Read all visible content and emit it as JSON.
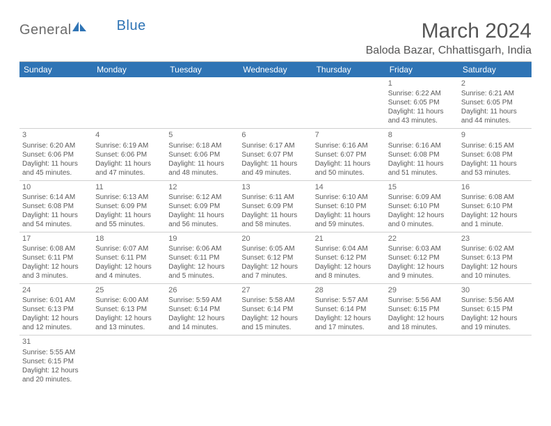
{
  "brand": {
    "part1": "General",
    "part2": "Blue"
  },
  "title": "March 2024",
  "location": "Baloda Bazar, Chhattisgarh, India",
  "colors": {
    "header_bg": "#2f74b5",
    "header_fg": "#ffffff",
    "text": "#5a5a5a",
    "rule": "#d0d0d0",
    "logo_gray": "#6b6b6b",
    "logo_blue": "#2f74b5",
    "background": "#ffffff"
  },
  "typography": {
    "title_fontsize": 30,
    "location_fontsize": 16,
    "dayname_fontsize": 12,
    "cell_fontsize": 10
  },
  "day_names": [
    "Sunday",
    "Monday",
    "Tuesday",
    "Wednesday",
    "Thursday",
    "Friday",
    "Saturday"
  ],
  "weeks": [
    [
      null,
      null,
      null,
      null,
      null,
      {
        "n": "1",
        "sr": "Sunrise: 6:22 AM",
        "ss": "Sunset: 6:05 PM",
        "d1": "Daylight: 11 hours",
        "d2": "and 43 minutes."
      },
      {
        "n": "2",
        "sr": "Sunrise: 6:21 AM",
        "ss": "Sunset: 6:05 PM",
        "d1": "Daylight: 11 hours",
        "d2": "and 44 minutes."
      }
    ],
    [
      {
        "n": "3",
        "sr": "Sunrise: 6:20 AM",
        "ss": "Sunset: 6:06 PM",
        "d1": "Daylight: 11 hours",
        "d2": "and 45 minutes."
      },
      {
        "n": "4",
        "sr": "Sunrise: 6:19 AM",
        "ss": "Sunset: 6:06 PM",
        "d1": "Daylight: 11 hours",
        "d2": "and 47 minutes."
      },
      {
        "n": "5",
        "sr": "Sunrise: 6:18 AM",
        "ss": "Sunset: 6:06 PM",
        "d1": "Daylight: 11 hours",
        "d2": "and 48 minutes."
      },
      {
        "n": "6",
        "sr": "Sunrise: 6:17 AM",
        "ss": "Sunset: 6:07 PM",
        "d1": "Daylight: 11 hours",
        "d2": "and 49 minutes."
      },
      {
        "n": "7",
        "sr": "Sunrise: 6:16 AM",
        "ss": "Sunset: 6:07 PM",
        "d1": "Daylight: 11 hours",
        "d2": "and 50 minutes."
      },
      {
        "n": "8",
        "sr": "Sunrise: 6:16 AM",
        "ss": "Sunset: 6:08 PM",
        "d1": "Daylight: 11 hours",
        "d2": "and 51 minutes."
      },
      {
        "n": "9",
        "sr": "Sunrise: 6:15 AM",
        "ss": "Sunset: 6:08 PM",
        "d1": "Daylight: 11 hours",
        "d2": "and 53 minutes."
      }
    ],
    [
      {
        "n": "10",
        "sr": "Sunrise: 6:14 AM",
        "ss": "Sunset: 6:08 PM",
        "d1": "Daylight: 11 hours",
        "d2": "and 54 minutes."
      },
      {
        "n": "11",
        "sr": "Sunrise: 6:13 AM",
        "ss": "Sunset: 6:09 PM",
        "d1": "Daylight: 11 hours",
        "d2": "and 55 minutes."
      },
      {
        "n": "12",
        "sr": "Sunrise: 6:12 AM",
        "ss": "Sunset: 6:09 PM",
        "d1": "Daylight: 11 hours",
        "d2": "and 56 minutes."
      },
      {
        "n": "13",
        "sr": "Sunrise: 6:11 AM",
        "ss": "Sunset: 6:09 PM",
        "d1": "Daylight: 11 hours",
        "d2": "and 58 minutes."
      },
      {
        "n": "14",
        "sr": "Sunrise: 6:10 AM",
        "ss": "Sunset: 6:10 PM",
        "d1": "Daylight: 11 hours",
        "d2": "and 59 minutes."
      },
      {
        "n": "15",
        "sr": "Sunrise: 6:09 AM",
        "ss": "Sunset: 6:10 PM",
        "d1": "Daylight: 12 hours",
        "d2": "and 0 minutes."
      },
      {
        "n": "16",
        "sr": "Sunrise: 6:08 AM",
        "ss": "Sunset: 6:10 PM",
        "d1": "Daylight: 12 hours",
        "d2": "and 1 minute."
      }
    ],
    [
      {
        "n": "17",
        "sr": "Sunrise: 6:08 AM",
        "ss": "Sunset: 6:11 PM",
        "d1": "Daylight: 12 hours",
        "d2": "and 3 minutes."
      },
      {
        "n": "18",
        "sr": "Sunrise: 6:07 AM",
        "ss": "Sunset: 6:11 PM",
        "d1": "Daylight: 12 hours",
        "d2": "and 4 minutes."
      },
      {
        "n": "19",
        "sr": "Sunrise: 6:06 AM",
        "ss": "Sunset: 6:11 PM",
        "d1": "Daylight: 12 hours",
        "d2": "and 5 minutes."
      },
      {
        "n": "20",
        "sr": "Sunrise: 6:05 AM",
        "ss": "Sunset: 6:12 PM",
        "d1": "Daylight: 12 hours",
        "d2": "and 7 minutes."
      },
      {
        "n": "21",
        "sr": "Sunrise: 6:04 AM",
        "ss": "Sunset: 6:12 PM",
        "d1": "Daylight: 12 hours",
        "d2": "and 8 minutes."
      },
      {
        "n": "22",
        "sr": "Sunrise: 6:03 AM",
        "ss": "Sunset: 6:12 PM",
        "d1": "Daylight: 12 hours",
        "d2": "and 9 minutes."
      },
      {
        "n": "23",
        "sr": "Sunrise: 6:02 AM",
        "ss": "Sunset: 6:13 PM",
        "d1": "Daylight: 12 hours",
        "d2": "and 10 minutes."
      }
    ],
    [
      {
        "n": "24",
        "sr": "Sunrise: 6:01 AM",
        "ss": "Sunset: 6:13 PM",
        "d1": "Daylight: 12 hours",
        "d2": "and 12 minutes."
      },
      {
        "n": "25",
        "sr": "Sunrise: 6:00 AM",
        "ss": "Sunset: 6:13 PM",
        "d1": "Daylight: 12 hours",
        "d2": "and 13 minutes."
      },
      {
        "n": "26",
        "sr": "Sunrise: 5:59 AM",
        "ss": "Sunset: 6:14 PM",
        "d1": "Daylight: 12 hours",
        "d2": "and 14 minutes."
      },
      {
        "n": "27",
        "sr": "Sunrise: 5:58 AM",
        "ss": "Sunset: 6:14 PM",
        "d1": "Daylight: 12 hours",
        "d2": "and 15 minutes."
      },
      {
        "n": "28",
        "sr": "Sunrise: 5:57 AM",
        "ss": "Sunset: 6:14 PM",
        "d1": "Daylight: 12 hours",
        "d2": "and 17 minutes."
      },
      {
        "n": "29",
        "sr": "Sunrise: 5:56 AM",
        "ss": "Sunset: 6:15 PM",
        "d1": "Daylight: 12 hours",
        "d2": "and 18 minutes."
      },
      {
        "n": "30",
        "sr": "Sunrise: 5:56 AM",
        "ss": "Sunset: 6:15 PM",
        "d1": "Daylight: 12 hours",
        "d2": "and 19 minutes."
      }
    ],
    [
      {
        "n": "31",
        "sr": "Sunrise: 5:55 AM",
        "ss": "Sunset: 6:15 PM",
        "d1": "Daylight: 12 hours",
        "d2": "and 20 minutes."
      },
      null,
      null,
      null,
      null,
      null,
      null
    ]
  ]
}
